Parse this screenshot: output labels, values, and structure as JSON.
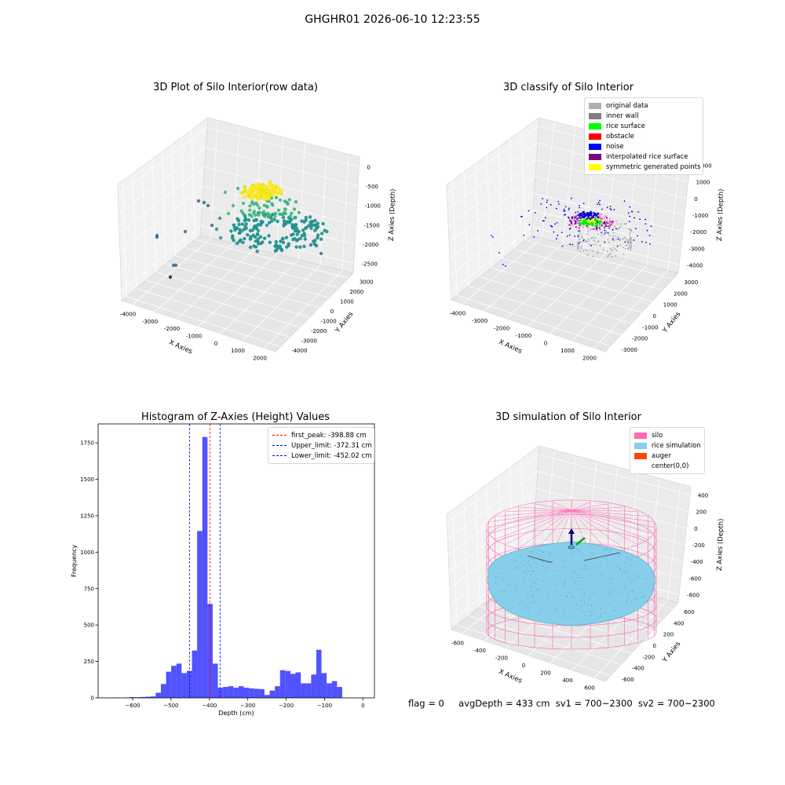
{
  "suptitle": "GHGHR01 2026-06-10 12:23:55",
  "status": {
    "flag": "flag = 0",
    "avg": "avgDepth = 433 cm",
    "sv1": "sv1 = 700~2300",
    "sv2": "sv2 = 700~2300"
  },
  "chart_data": [
    {
      "type": "scatter",
      "title": "3D Plot of Silo Interior(row data)",
      "xlabel": "X Axies",
      "ylabel": "Y Axies",
      "zlabel": "Z Axies (Depth)",
      "x_ticks": [
        "-4000",
        "-3000",
        "-2000",
        "-1000",
        "0",
        "1000",
        "2000"
      ],
      "y_ticks": [
        "-4000",
        "-3000",
        "-2000",
        "-1000",
        "0",
        "1000",
        "2000",
        "3000"
      ],
      "z_ticks": [
        "0",
        "-500",
        "-1000",
        "-1500",
        "-2000",
        "-2500"
      ],
      "colormap": [
        "#440154",
        "#31688e",
        "#21918c",
        "#35b779",
        "#fde725"
      ]
    },
    {
      "type": "scatter",
      "title": "3D classify of Silo Interior",
      "xlabel": "X Axies",
      "ylabel": "Y Axies",
      "zlabel": "Z Axies (Depth)",
      "x_ticks": [
        "-4000",
        "-3000",
        "-2000",
        "-1000",
        "0",
        "1000",
        "2000"
      ],
      "y_ticks": [
        "-3000",
        "-2000",
        "-1000",
        "0",
        "1000",
        "2000",
        "3000"
      ],
      "z_ticks": [
        "2000",
        "1000",
        "0",
        "-1000",
        "-2000",
        "-3000",
        "-4000"
      ],
      "legend": [
        {
          "label": "original data",
          "color": "#b0b0b0"
        },
        {
          "label": "inner wall",
          "color": "#808080"
        },
        {
          "label": "rice surface",
          "color": "#00ff00"
        },
        {
          "label": "obstacle",
          "color": "#ff0000"
        },
        {
          "label": "noise",
          "color": "#0000ff"
        },
        {
          "label": "interpolated rice surface",
          "color": "#800080"
        },
        {
          "label": "symmetric generated points",
          "color": "#ffff00"
        }
      ]
    },
    {
      "type": "bar",
      "title": "Histogram of Z-Axies (Height) Values",
      "xlabel": "Depth (cm)",
      "ylabel": "Frequency",
      "xlim": [
        -690,
        30
      ],
      "ylim": [
        0,
        1880
      ],
      "x_ticks": [
        -600,
        -500,
        -400,
        -300,
        -200,
        -100,
        0
      ],
      "y_ticks": [
        0,
        250,
        500,
        750,
        1000,
        1250,
        1500,
        1750
      ],
      "bar_color": "#0000ff",
      "bin_width": 13.5,
      "bins_start": [
        -648,
        -634.5,
        -621,
        -607.5,
        -594,
        -580.5,
        -567,
        -553.5,
        -540,
        -526.5,
        -513,
        -499.5,
        -486,
        -472.5,
        -459,
        -445.5,
        -432,
        -418.5,
        -405,
        -391.5,
        -378,
        -364.5,
        -351,
        -337.5,
        -324,
        -310.5,
        -297,
        -283.5,
        -270,
        -256.5,
        -243,
        -229.5,
        -216,
        -202.5,
        -189,
        -175.5,
        -162,
        -148.5,
        -135,
        -121.5,
        -108,
        -94.5,
        -81,
        -67.5,
        -54,
        -40.5,
        -27,
        -13.5
      ],
      "values": [
        2,
        0,
        3,
        5,
        4,
        6,
        8,
        10,
        35,
        95,
        180,
        220,
        235,
        170,
        185,
        325,
        1145,
        1790,
        645,
        235,
        70,
        75,
        80,
        70,
        80,
        70,
        65,
        62,
        60,
        20,
        50,
        80,
        190,
        185,
        165,
        175,
        100,
        100,
        160,
        330,
        170,
        100,
        115,
        75,
        0,
        0,
        0,
        0
      ],
      "vlines": [
        {
          "label": "first_peak: -398.88 cm",
          "x": -398.88,
          "color": "#ff0000"
        },
        {
          "label": "Upper_limit: -372.31 cm",
          "x": -372.31,
          "color": "#0000ff"
        },
        {
          "label": "Lower_limit: -452.02 cm",
          "x": -452.02,
          "color": "#0000ff"
        }
      ]
    },
    {
      "type": "scatter",
      "title": "3D simulation of Silo Interior",
      "xlabel": "X Axies",
      "ylabel": "Y Axies",
      "zlabel": "Z Axies (Depth)",
      "x_ticks": [
        "-600",
        "-400",
        "-200",
        "0",
        "200",
        "400",
        "600"
      ],
      "y_ticks": [
        "-600",
        "-400",
        "-200",
        "0",
        "200",
        "400",
        "600"
      ],
      "z_ticks": [
        "400",
        "200",
        "0",
        "-200",
        "-400",
        "-600",
        "-800"
      ],
      "legend": [
        {
          "label": "silo",
          "color": "#ff69b4"
        },
        {
          "label": "rice simulation",
          "color": "#87ceeb"
        },
        {
          "label": "auger",
          "color": "#ff4500"
        },
        {
          "label": "center(0,0)",
          "color": ""
        }
      ]
    }
  ]
}
